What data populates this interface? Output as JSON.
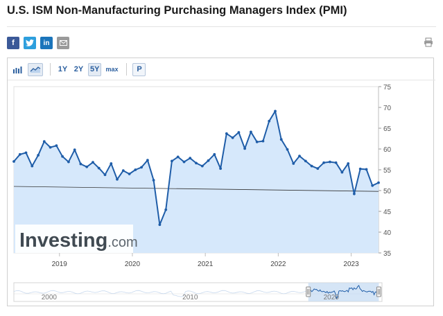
{
  "page": {
    "title": "U.S. ISM Non-Manufacturing Purchasing Managers Index (PMI)"
  },
  "share": {
    "facebook": "f",
    "twitter": "twitter-bird",
    "linkedin": "in",
    "email": "envelope",
    "print": "printer"
  },
  "toolbar": {
    "bar_chart_icon": "bar-chart",
    "line_chart_icon": "line-chart",
    "range_1y": "1Y",
    "range_2y": "2Y",
    "range_5y": "5Y",
    "range_max": "max",
    "p_button": "P"
  },
  "watermark": {
    "brand": "Investing",
    "suffix": ".com"
  },
  "colors": {
    "line": "#1f5da8",
    "fill": "#d6e8fb",
    "reference": "#333333",
    "navigator_line": "#8fb5df"
  },
  "chart_data": {
    "type": "line",
    "title": "U.S. ISM Non-Manufacturing Purchasing Managers Index (PMI)",
    "xlabel": "",
    "ylabel": "",
    "x_start": 2018.375,
    "x_step": 0.0833333,
    "ylim": [
      35,
      75
    ],
    "yticks": [
      35,
      40,
      45,
      50,
      55,
      60,
      65,
      70,
      75
    ],
    "xticks": [
      {
        "year": 2019,
        "label": "2019"
      },
      {
        "year": 2020,
        "label": "2020"
      },
      {
        "year": 2021,
        "label": "2021"
      },
      {
        "year": 2022,
        "label": "2022"
      },
      {
        "year": 2023,
        "label": "2023"
      }
    ],
    "grid": false,
    "series": [
      {
        "name": "ISM Non-Manufacturing PMI",
        "values": [
          57.0,
          58.7,
          59.1,
          55.9,
          58.5,
          61.8,
          60.4,
          60.8,
          58.2,
          56.9,
          59.8,
          56.4,
          55.7,
          56.8,
          55.4,
          53.8,
          56.5,
          52.7,
          54.8,
          54.0,
          55.0,
          55.6,
          57.3,
          52.5,
          41.8,
          45.4,
          57.1,
          58.1,
          56.9,
          57.8,
          56.6,
          55.9,
          57.2,
          58.7,
          55.3,
          63.7,
          62.7,
          64.0,
          60.1,
          64.1,
          61.7,
          61.9,
          66.7,
          69.1,
          62.3,
          59.9,
          56.5,
          58.3,
          57.1,
          55.9,
          55.3,
          56.7,
          56.9,
          56.7,
          54.4,
          56.5,
          49.2,
          55.2,
          55.1,
          51.2,
          51.9
        ],
        "reference": {
          "start": 51.0,
          "end": 49.8
        }
      }
    ],
    "navigator": {
      "labels": [
        {
          "year": 2000,
          "label": "2000"
        },
        {
          "year": 2010,
          "label": "2010"
        },
        {
          "year": 2020,
          "label": "2020"
        }
      ],
      "range_start": 1997.5,
      "range_end": 2023.6,
      "selected_start": 2018.375,
      "selected_end": 2023.375
    }
  }
}
